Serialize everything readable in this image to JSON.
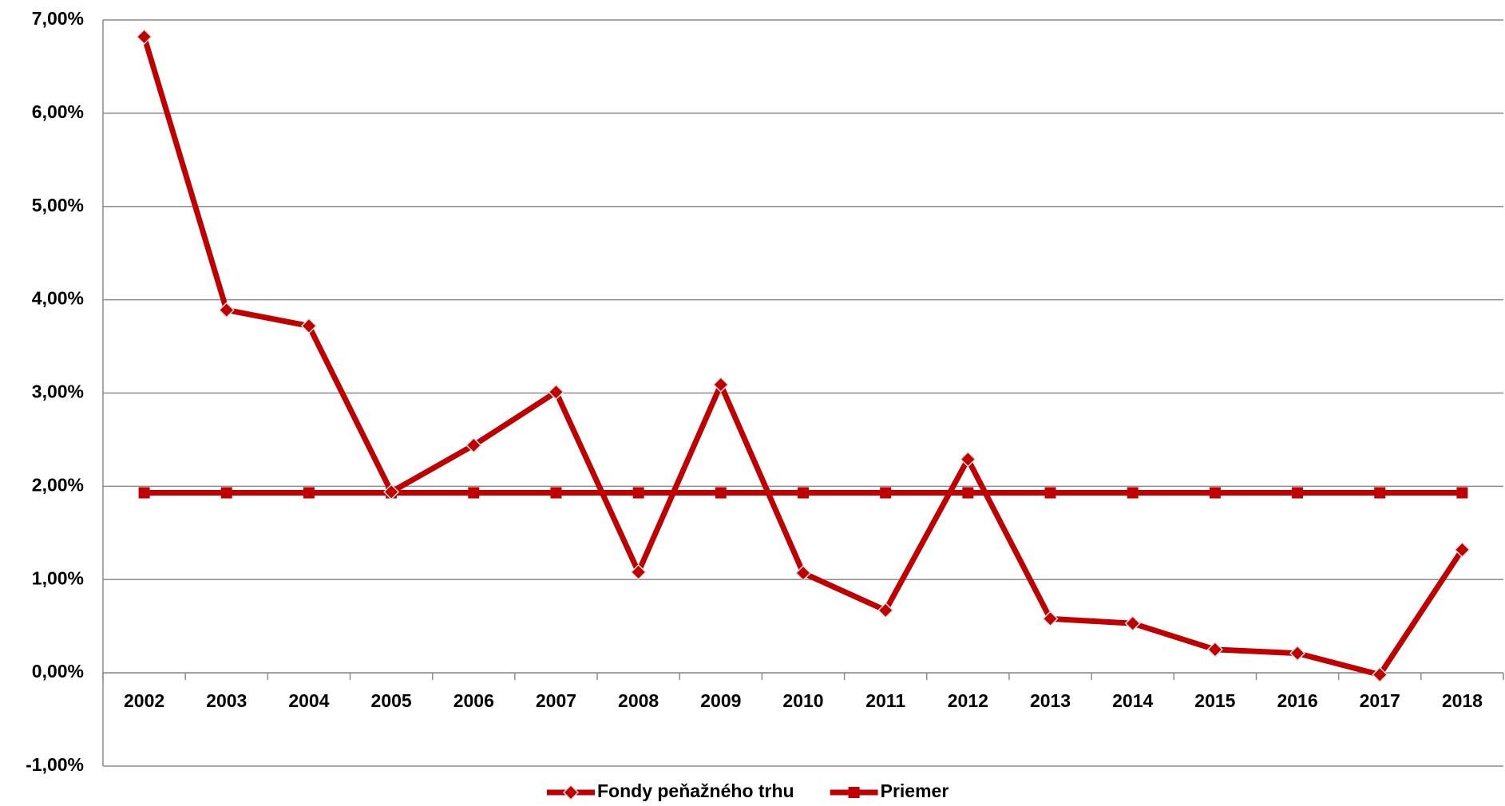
{
  "chart_data": {
    "type": "line",
    "categories": [
      "2002",
      "2003",
      "2004",
      "2005",
      "2006",
      "2007",
      "2008",
      "2009",
      "2010",
      "2011",
      "2012",
      "2013",
      "2014",
      "2015",
      "2016",
      "2017",
      "2018"
    ],
    "series": [
      {
        "name": "Fondy peňažného trhu",
        "color": "#c00000",
        "marker": "diamond",
        "values": [
          6.82,
          3.89,
          3.72,
          1.94,
          2.44,
          3.01,
          1.08,
          3.09,
          1.07,
          0.67,
          2.29,
          0.58,
          0.53,
          0.25,
          0.21,
          -0.02,
          1.32
        ]
      },
      {
        "name": "Priemer",
        "color": "#c00000",
        "marker": "square",
        "values": [
          1.93,
          1.93,
          1.93,
          1.93,
          1.93,
          1.93,
          1.93,
          1.93,
          1.93,
          1.93,
          1.93,
          1.93,
          1.93,
          1.93,
          1.93,
          1.93,
          1.93
        ]
      }
    ],
    "ylim": [
      -1,
      7
    ],
    "yticks": [
      {
        "value": -1,
        "label": "-1,00%"
      },
      {
        "value": 0,
        "label": "0,00%"
      },
      {
        "value": 1,
        "label": "1,00%"
      },
      {
        "value": 2,
        "label": "2,00%"
      },
      {
        "value": 3,
        "label": "3,00%"
      },
      {
        "value": 4,
        "label": "4,00%"
      },
      {
        "value": 5,
        "label": "5,00%"
      },
      {
        "value": 6,
        "label": "6,00%"
      },
      {
        "value": 7,
        "label": "7,00%"
      }
    ],
    "grid": true,
    "legend": "bottom"
  }
}
